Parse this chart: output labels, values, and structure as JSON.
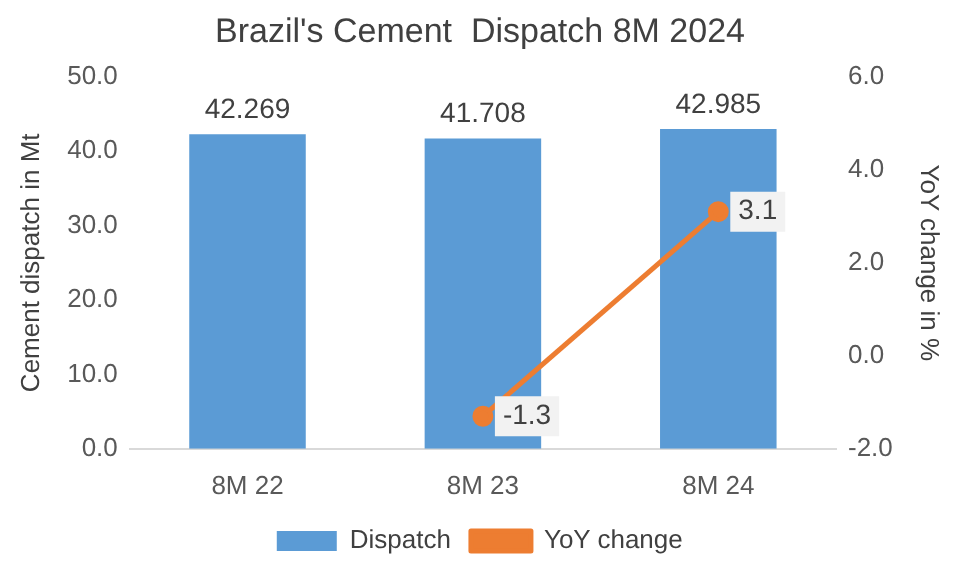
{
  "chart_data": {
    "type": "bar",
    "title": "Brazil's Cement  Dispatch 8M 2024",
    "ylabel": "Cement dispatch in Mt",
    "y2label": "YoY change in %",
    "categories": [
      "8M 22",
      "8M 23",
      "8M 24"
    ],
    "series": [
      {
        "name": "Dispatch",
        "color": "#5b9bd5",
        "values": [
          42.269,
          41.708,
          42.985
        ]
      },
      {
        "name": "YoY change",
        "type": "line",
        "axis": "y2",
        "color": "#ed7d31",
        "marker": "circle",
        "values": [
          null,
          -1.3,
          3.1
        ]
      }
    ],
    "ylim": [
      0,
      50
    ],
    "yticks": [
      {
        "value": 0,
        "label": "0.0"
      },
      {
        "value": 10,
        "label": "10.0"
      },
      {
        "value": 20,
        "label": "20.0"
      },
      {
        "value": 30,
        "label": "30.0"
      },
      {
        "value": 40,
        "label": "40.0"
      },
      {
        "value": 50,
        "label": "50.0"
      }
    ],
    "y2lim": [
      -2,
      6
    ],
    "y2ticks": [
      {
        "value": -2,
        "label": "-2.0"
      },
      {
        "value": 0,
        "label": "0.0"
      },
      {
        "value": 2,
        "label": "2.0"
      },
      {
        "value": 4,
        "label": "4.0"
      },
      {
        "value": 6,
        "label": "6.0"
      }
    ],
    "data_labels": true,
    "grid": false,
    "legend": "bottom"
  }
}
